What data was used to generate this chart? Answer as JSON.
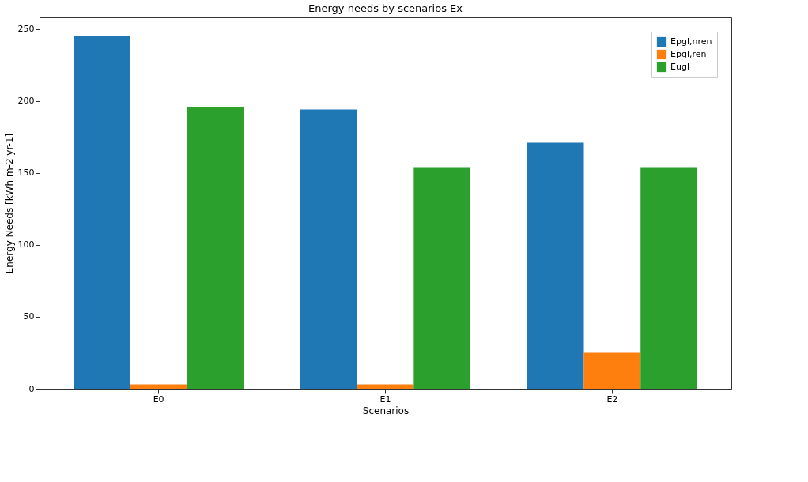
{
  "chart_data": {
    "type": "bar",
    "title": "Energy needs by scenarios Ex",
    "xlabel": "Scenarios",
    "ylabel": "Energy Needs [kWh m-2 yr-1]",
    "categories": [
      "E0",
      "E1",
      "E2"
    ],
    "series": [
      {
        "name": "Epgl,nren",
        "color": "#1f77b4",
        "values": [
          245,
          194,
          171
        ]
      },
      {
        "name": "Epgl,ren",
        "color": "#ff7f0e",
        "values": [
          3,
          3,
          25
        ]
      },
      {
        "name": "Eugl",
        "color": "#2ca02c",
        "values": [
          196,
          154,
          154
        ]
      }
    ],
    "ylim": [
      0,
      258
    ],
    "yticks": [
      0,
      50,
      100,
      150,
      200,
      250
    ],
    "grid": false,
    "legend": "top right"
  }
}
